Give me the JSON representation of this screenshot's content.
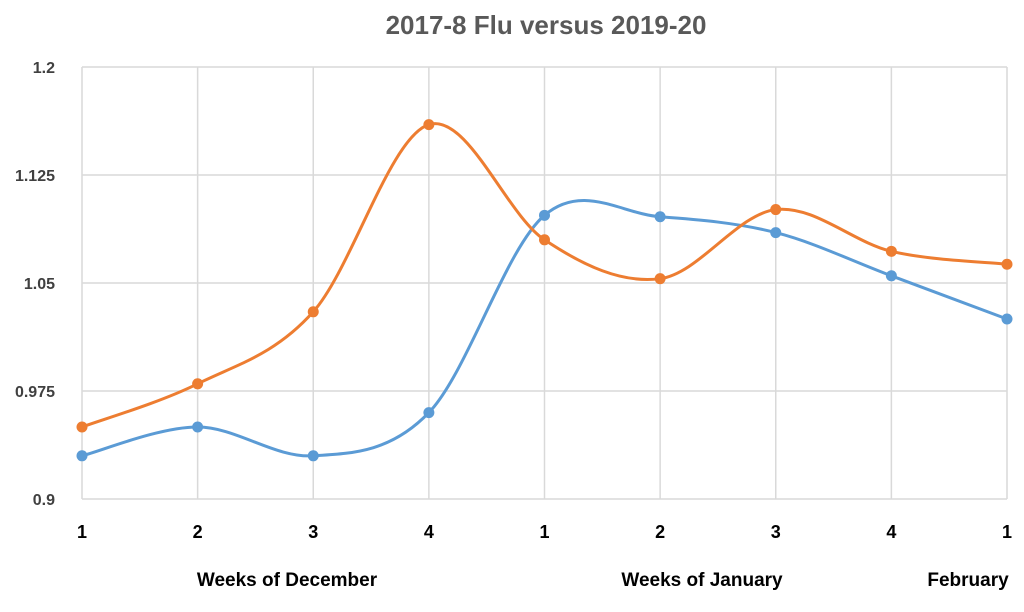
{
  "chart_data": {
    "type": "line",
    "title": "2017-8 Flu versus 2019-20",
    "x_tick_labels": [
      "1",
      "2",
      "3",
      "4",
      "1",
      "2",
      "3",
      "4",
      "1"
    ],
    "group_labels": [
      "Weeks of December",
      "Weeks of January",
      "February"
    ],
    "ylim": [
      0.9,
      1.2
    ],
    "y_ticks": [
      "0.9",
      "0.975",
      "1.05",
      "1.125",
      "1.2"
    ],
    "grid": true,
    "smooth": true,
    "series": [
      {
        "color": "#5b9bd5",
        "values": [
          0.93,
          0.95,
          0.93,
          0.96,
          1.097,
          1.096,
          1.085,
          1.055,
          1.025
        ]
      },
      {
        "color": "#ed7d31",
        "values": [
          0.95,
          0.98,
          1.03,
          1.16,
          1.08,
          1.053,
          1.101,
          1.072,
          1.063
        ]
      }
    ]
  }
}
